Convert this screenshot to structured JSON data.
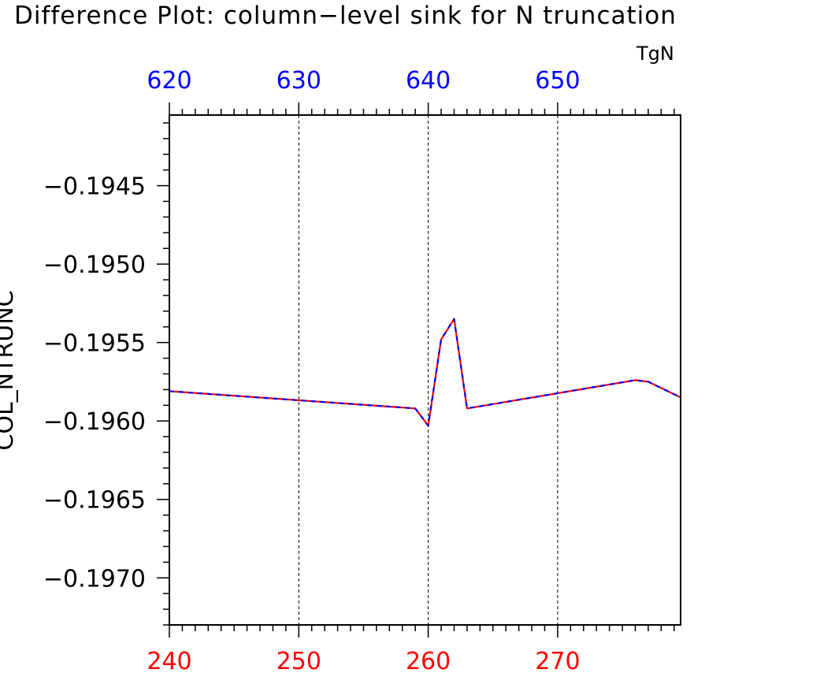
{
  "chart_data": {
    "type": "line",
    "title": "Difference Plot: column−level sink for N truncation",
    "ylabel": "COL_NTRUNC",
    "top_axis_name": "TgN",
    "xlim": [
      240,
      279.5
    ],
    "ylim": [
      -0.1973,
      -0.19405
    ],
    "x_ticks": [
      240,
      250,
      260,
      270
    ],
    "x_tick_labels": [
      "240",
      "250",
      "260",
      "270"
    ],
    "top_ticks": [
      620,
      630,
      640,
      650
    ],
    "top_tick_labels": [
      "620",
      "630",
      "640",
      "650"
    ],
    "y_ticks": [
      -0.1945,
      -0.195,
      -0.1955,
      -0.196,
      -0.1965,
      -0.197
    ],
    "y_tick_labels": [
      "−0.1945",
      "−0.1950",
      "−0.1955",
      "−0.1960",
      "−0.1965",
      "−0.1970"
    ],
    "grid": "vertical dashed lines at major x ticks",
    "series": [
      {
        "color": "#ff0000",
        "style": "solid",
        "x": [
          240,
          259,
          260,
          261,
          262,
          263,
          276,
          277,
          279.5
        ],
        "y": [
          -0.19581,
          -0.19592,
          -0.19603,
          -0.19548,
          -0.19535,
          -0.19592,
          -0.19574,
          -0.19575,
          -0.19585
        ]
      },
      {
        "color": "#0000ff",
        "style": "dashed",
        "x": [
          240,
          259,
          260,
          261,
          262,
          263,
          276,
          277,
          279.5
        ],
        "y": [
          -0.19581,
          -0.19592,
          -0.19603,
          -0.19548,
          -0.19535,
          -0.19592,
          -0.19574,
          -0.19575,
          -0.19585
        ]
      }
    ],
    "colors": {
      "bottom_tick_labels": "#ff0000",
      "top_tick_labels": "#0000ff",
      "axes": "#000000"
    }
  }
}
